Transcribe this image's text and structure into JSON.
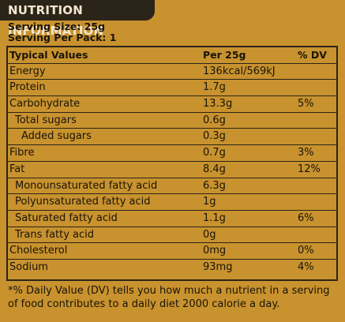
{
  "title": "NUTRITION INFORMATION",
  "serving_size": "Serving Size: 25g",
  "serving_per_pack": "Serving Per Pack: 1",
  "table": {
    "headers": [
      "Typical Values",
      "Per 25g",
      "% DV"
    ],
    "rows": [
      {
        "name": "Energy",
        "value": "136kcal/569kJ",
        "dv": "",
        "indent": 0
      },
      {
        "name": "Protein",
        "value": "1.7g",
        "dv": "",
        "indent": 0
      },
      {
        "name": "Carbohydrate",
        "value": "13.3g",
        "dv": "5%",
        "indent": 0
      },
      {
        "name": "Total sugars",
        "value": "0.6g",
        "dv": "",
        "indent": 1
      },
      {
        "name": "Added sugars",
        "value": "0.3g",
        "dv": "",
        "indent": 2
      },
      {
        "name": "Fibre",
        "value": "0.7g",
        "dv": "3%",
        "indent": 0
      },
      {
        "name": "Fat",
        "value": "8.4g",
        "dv": "12%",
        "indent": 0
      },
      {
        "name": "Monounsaturated fatty acid",
        "value": "6.3g",
        "dv": "",
        "indent": 1
      },
      {
        "name": "Polyunsaturated fatty acid",
        "value": "1g",
        "dv": "",
        "indent": 1
      },
      {
        "name": "Saturated fatty acid",
        "value": "1.1g",
        "dv": "6%",
        "indent": 1
      },
      {
        "name": "Trans fatty acid",
        "value": "0g",
        "dv": "",
        "indent": 1
      },
      {
        "name": "Cholesterol",
        "value": "0mg",
        "dv": "0%",
        "indent": 0
      },
      {
        "name": "Sodium",
        "value": "93mg",
        "dv": "4%",
        "indent": 0
      }
    ]
  },
  "footnote": "*% Daily Value (DV) tells you how much a nutrient in a serving of food contributes to a daily diet 2000 calorie a day.",
  "colors": {
    "background": "#c8922e",
    "ink": "#2b2418",
    "title_text": "#f3e7cf"
  }
}
